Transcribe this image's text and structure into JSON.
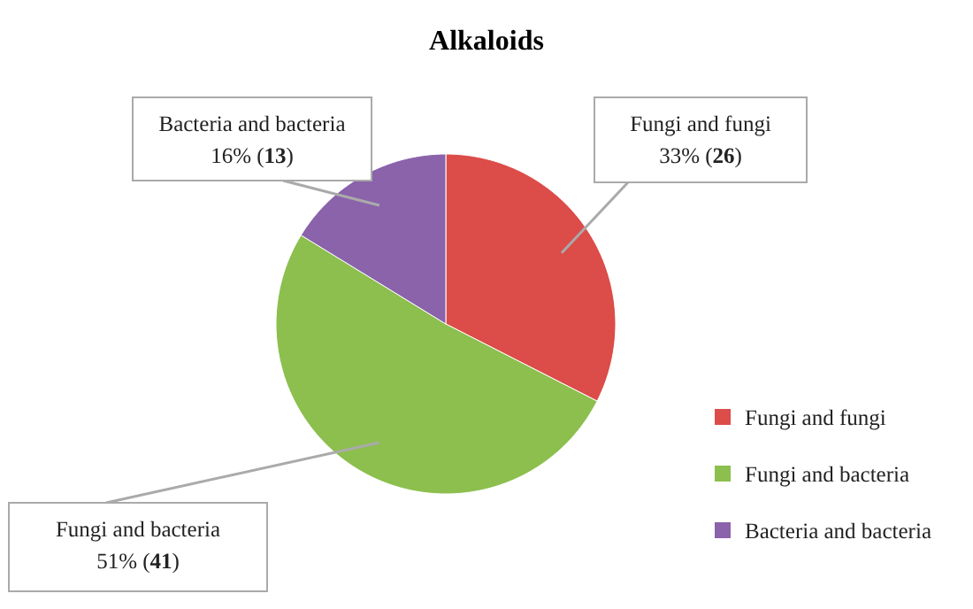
{
  "chart_data": {
    "type": "pie",
    "title": "Alkaloids",
    "categories": [
      "Fungi and fungi",
      "Fungi and bacteria",
      "Bacteria and bacteria"
    ],
    "values": [
      26,
      41,
      13
    ],
    "colors": [
      "#dc4c48",
      "#8cbf4e",
      "#8a63ab"
    ],
    "value_labels": [
      "33% (26)",
      "51% (41)",
      "16% (13)"
    ],
    "legend": "right"
  }
}
